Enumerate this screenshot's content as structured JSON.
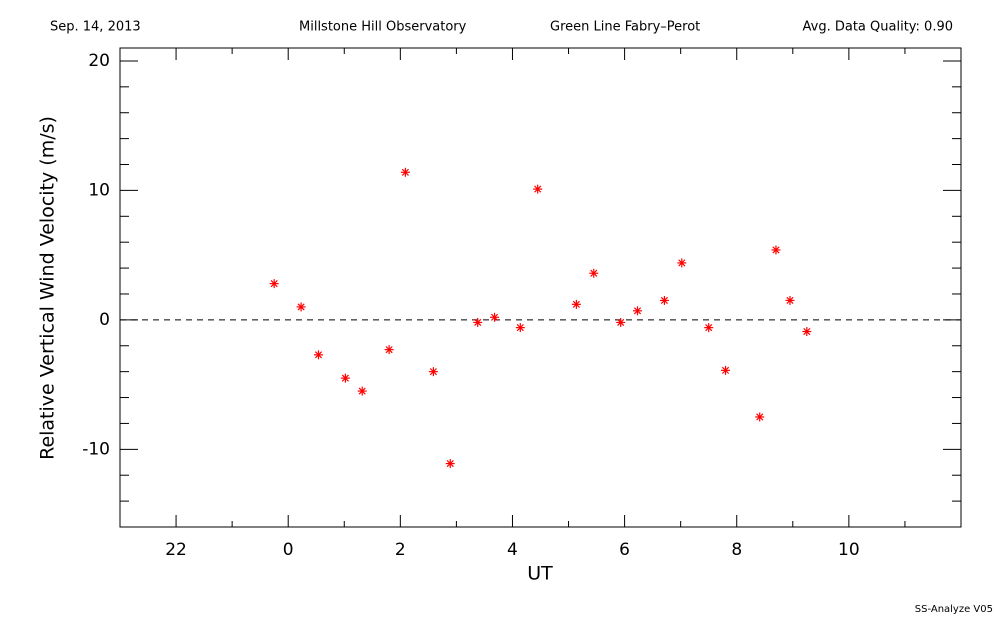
{
  "chart_data": {
    "type": "scatter",
    "header": [
      "Sep. 14, 2013",
      "Millstone Hill Observatory",
      "Green Line Fabry–Perot",
      "Avg. Data Quality: 0.90"
    ],
    "footer": "SS-Analyze V05",
    "x_label": "UT",
    "y_label": "Relative Vertical Wind Velocity (m/s)",
    "xlim": [
      21,
      36
    ],
    "ylim": [
      -16,
      21
    ],
    "xticks": [
      22,
      {
        "value": 24,
        "label": "0"
      },
      {
        "value": 26,
        "label": "2"
      },
      {
        "value": 28,
        "label": "4"
      },
      {
        "value": 30,
        "label": "6"
      },
      {
        "value": 32,
        "label": "8"
      },
      {
        "value": 34,
        "label": "10"
      }
    ],
    "xminorticks": [
      21,
      23,
      25,
      27,
      29,
      31,
      33,
      35
    ],
    "yticks": [
      -10,
      0,
      10,
      20
    ],
    "yminorticks": [
      -16,
      -14,
      -12,
      -8,
      -6,
      -4,
      -2,
      2,
      4,
      6,
      8,
      12,
      14,
      16,
      18
    ],
    "hline": 0,
    "series": [
      {
        "color": "#ff0000",
        "x": [
          23.75,
          24.23,
          24.54,
          25.02,
          25.32,
          25.8,
          26.09,
          26.59,
          26.89,
          27.38,
          27.68,
          28.14,
          28.45,
          29.14,
          29.45,
          29.93,
          30.23,
          30.71,
          31.02,
          31.5,
          31.8,
          32.41,
          32.7,
          32.95,
          33.25
        ],
        "values": [
          2.8,
          1.0,
          -2.7,
          -4.5,
          -5.5,
          -2.3,
          11.4,
          -4.0,
          -11.1,
          -0.2,
          0.2,
          -0.6,
          10.1,
          1.2,
          3.6,
          -0.2,
          0.7,
          1.5,
          4.4,
          -0.6,
          -3.9,
          -7.5,
          5.4,
          1.5,
          -0.9
        ]
      }
    ]
  }
}
